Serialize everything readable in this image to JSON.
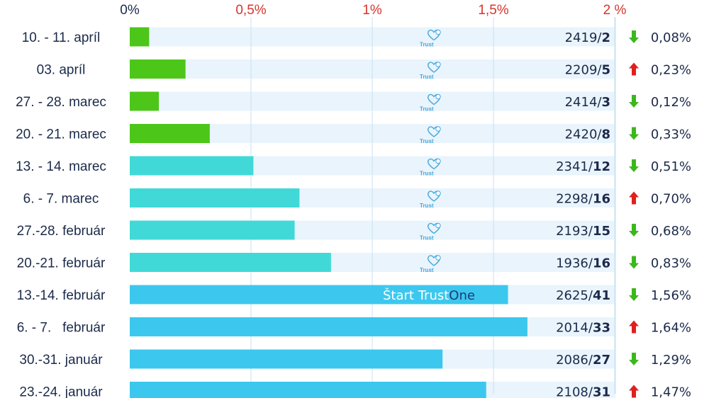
{
  "chart_data": {
    "type": "bar",
    "orientation": "horizontal",
    "xlim": [
      0,
      2
    ],
    "x_ticks": [
      {
        "value": 0,
        "label": "0%"
      },
      {
        "value": 0.5,
        "label": "0,5%"
      },
      {
        "value": 1,
        "label": "1%"
      },
      {
        "value": 1.5,
        "label": "1,5%"
      },
      {
        "value": 2,
        "label": "2 %"
      }
    ],
    "grid": true,
    "categories": [
      "10. - 11. apríl",
      "03. apríl",
      "27. - 28. marec",
      "20. - 21. marec",
      "13. - 14. marec",
      "6. - 7. marec",
      "27.-28. február",
      "20.-21. február",
      "13.-14. február",
      "6. - 7.   február",
      "30.-31. január",
      "23.-24. január"
    ],
    "values": [
      0.08,
      0.23,
      0.12,
      0.33,
      0.51,
      0.7,
      0.68,
      0.83,
      1.56,
      1.64,
      1.29,
      1.47
    ],
    "value_labels": [
      "0,08%",
      "0,23%",
      "0,12%",
      "0,33%",
      "0,51%",
      "0,70%",
      "0,68%",
      "0,83%",
      "1,56%",
      "1,64%",
      "1,29%",
      "1,47%"
    ],
    "tested": [
      "2419/",
      "2209/",
      "2414/",
      "2420/",
      "2341/",
      "2298/",
      "2193/",
      "1936/",
      "2625/",
      "2014/",
      "2086/",
      "2108/"
    ],
    "positive": [
      "2",
      "5",
      "3",
      "8",
      "12",
      "16",
      "15",
      "16",
      "41",
      "33",
      "27",
      "31"
    ],
    "trend": [
      "down",
      "up",
      "down",
      "down",
      "down",
      "up",
      "down",
      "down",
      "down",
      "up",
      "down",
      "up"
    ],
    "highlight_index": 8
  },
  "watermark_text": "Trust",
  "promo": {
    "part1": "Štart Trust",
    "part2": "One"
  },
  "colors": {
    "green_bar": "#4cc619",
    "teal_bar": "#40d9d8",
    "blue_bar": "#3cc8ee",
    "track": "#e9f4fc",
    "grid": "#c9e2f3",
    "text_dark": "#1b2a4a",
    "highlight_text": "#d7332b",
    "tick_zero": "#1b2a4a",
    "tick_other": "#d7332b",
    "arrow_down": "#3bb81c",
    "arrow_up": "#e02020"
  }
}
